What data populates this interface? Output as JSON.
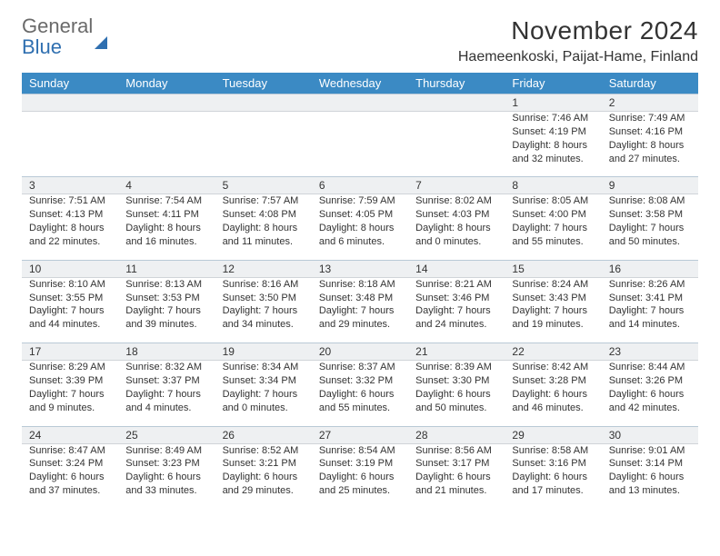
{
  "logo": {
    "text1": "General",
    "text2": "Blue"
  },
  "title": "November 2024",
  "location": "Haemeenkoski, Paijat-Hame, Finland",
  "colors": {
    "header_bg": "#3b8ac4",
    "band_bg": "#eef0f2",
    "band_border_top": "#b9c9d6",
    "band_border_bottom": "#d0d4d8",
    "text": "#333333",
    "logo_gray": "#6a6a6a",
    "logo_blue": "#2f6fb0"
  },
  "weekdays": [
    "Sunday",
    "Monday",
    "Tuesday",
    "Wednesday",
    "Thursday",
    "Friday",
    "Saturday"
  ],
  "weeks": [
    [
      null,
      null,
      null,
      null,
      null,
      {
        "n": "1",
        "sr": "Sunrise: 7:46 AM",
        "ss": "Sunset: 4:19 PM",
        "d1": "Daylight: 8 hours",
        "d2": "and 32 minutes."
      },
      {
        "n": "2",
        "sr": "Sunrise: 7:49 AM",
        "ss": "Sunset: 4:16 PM",
        "d1": "Daylight: 8 hours",
        "d2": "and 27 minutes."
      }
    ],
    [
      {
        "n": "3",
        "sr": "Sunrise: 7:51 AM",
        "ss": "Sunset: 4:13 PM",
        "d1": "Daylight: 8 hours",
        "d2": "and 22 minutes."
      },
      {
        "n": "4",
        "sr": "Sunrise: 7:54 AM",
        "ss": "Sunset: 4:11 PM",
        "d1": "Daylight: 8 hours",
        "d2": "and 16 minutes."
      },
      {
        "n": "5",
        "sr": "Sunrise: 7:57 AM",
        "ss": "Sunset: 4:08 PM",
        "d1": "Daylight: 8 hours",
        "d2": "and 11 minutes."
      },
      {
        "n": "6",
        "sr": "Sunrise: 7:59 AM",
        "ss": "Sunset: 4:05 PM",
        "d1": "Daylight: 8 hours",
        "d2": "and 6 minutes."
      },
      {
        "n": "7",
        "sr": "Sunrise: 8:02 AM",
        "ss": "Sunset: 4:03 PM",
        "d1": "Daylight: 8 hours",
        "d2": "and 0 minutes."
      },
      {
        "n": "8",
        "sr": "Sunrise: 8:05 AM",
        "ss": "Sunset: 4:00 PM",
        "d1": "Daylight: 7 hours",
        "d2": "and 55 minutes."
      },
      {
        "n": "9",
        "sr": "Sunrise: 8:08 AM",
        "ss": "Sunset: 3:58 PM",
        "d1": "Daylight: 7 hours",
        "d2": "and 50 minutes."
      }
    ],
    [
      {
        "n": "10",
        "sr": "Sunrise: 8:10 AM",
        "ss": "Sunset: 3:55 PM",
        "d1": "Daylight: 7 hours",
        "d2": "and 44 minutes."
      },
      {
        "n": "11",
        "sr": "Sunrise: 8:13 AM",
        "ss": "Sunset: 3:53 PM",
        "d1": "Daylight: 7 hours",
        "d2": "and 39 minutes."
      },
      {
        "n": "12",
        "sr": "Sunrise: 8:16 AM",
        "ss": "Sunset: 3:50 PM",
        "d1": "Daylight: 7 hours",
        "d2": "and 34 minutes."
      },
      {
        "n": "13",
        "sr": "Sunrise: 8:18 AM",
        "ss": "Sunset: 3:48 PM",
        "d1": "Daylight: 7 hours",
        "d2": "and 29 minutes."
      },
      {
        "n": "14",
        "sr": "Sunrise: 8:21 AM",
        "ss": "Sunset: 3:46 PM",
        "d1": "Daylight: 7 hours",
        "d2": "and 24 minutes."
      },
      {
        "n": "15",
        "sr": "Sunrise: 8:24 AM",
        "ss": "Sunset: 3:43 PM",
        "d1": "Daylight: 7 hours",
        "d2": "and 19 minutes."
      },
      {
        "n": "16",
        "sr": "Sunrise: 8:26 AM",
        "ss": "Sunset: 3:41 PM",
        "d1": "Daylight: 7 hours",
        "d2": "and 14 minutes."
      }
    ],
    [
      {
        "n": "17",
        "sr": "Sunrise: 8:29 AM",
        "ss": "Sunset: 3:39 PM",
        "d1": "Daylight: 7 hours",
        "d2": "and 9 minutes."
      },
      {
        "n": "18",
        "sr": "Sunrise: 8:32 AM",
        "ss": "Sunset: 3:37 PM",
        "d1": "Daylight: 7 hours",
        "d2": "and 4 minutes."
      },
      {
        "n": "19",
        "sr": "Sunrise: 8:34 AM",
        "ss": "Sunset: 3:34 PM",
        "d1": "Daylight: 7 hours",
        "d2": "and 0 minutes."
      },
      {
        "n": "20",
        "sr": "Sunrise: 8:37 AM",
        "ss": "Sunset: 3:32 PM",
        "d1": "Daylight: 6 hours",
        "d2": "and 55 minutes."
      },
      {
        "n": "21",
        "sr": "Sunrise: 8:39 AM",
        "ss": "Sunset: 3:30 PM",
        "d1": "Daylight: 6 hours",
        "d2": "and 50 minutes."
      },
      {
        "n": "22",
        "sr": "Sunrise: 8:42 AM",
        "ss": "Sunset: 3:28 PM",
        "d1": "Daylight: 6 hours",
        "d2": "and 46 minutes."
      },
      {
        "n": "23",
        "sr": "Sunrise: 8:44 AM",
        "ss": "Sunset: 3:26 PM",
        "d1": "Daylight: 6 hours",
        "d2": "and 42 minutes."
      }
    ],
    [
      {
        "n": "24",
        "sr": "Sunrise: 8:47 AM",
        "ss": "Sunset: 3:24 PM",
        "d1": "Daylight: 6 hours",
        "d2": "and 37 minutes."
      },
      {
        "n": "25",
        "sr": "Sunrise: 8:49 AM",
        "ss": "Sunset: 3:23 PM",
        "d1": "Daylight: 6 hours",
        "d2": "and 33 minutes."
      },
      {
        "n": "26",
        "sr": "Sunrise: 8:52 AM",
        "ss": "Sunset: 3:21 PM",
        "d1": "Daylight: 6 hours",
        "d2": "and 29 minutes."
      },
      {
        "n": "27",
        "sr": "Sunrise: 8:54 AM",
        "ss": "Sunset: 3:19 PM",
        "d1": "Daylight: 6 hours",
        "d2": "and 25 minutes."
      },
      {
        "n": "28",
        "sr": "Sunrise: 8:56 AM",
        "ss": "Sunset: 3:17 PM",
        "d1": "Daylight: 6 hours",
        "d2": "and 21 minutes."
      },
      {
        "n": "29",
        "sr": "Sunrise: 8:58 AM",
        "ss": "Sunset: 3:16 PM",
        "d1": "Daylight: 6 hours",
        "d2": "and 17 minutes."
      },
      {
        "n": "30",
        "sr": "Sunrise: 9:01 AM",
        "ss": "Sunset: 3:14 PM",
        "d1": "Daylight: 6 hours",
        "d2": "and 13 minutes."
      }
    ]
  ]
}
